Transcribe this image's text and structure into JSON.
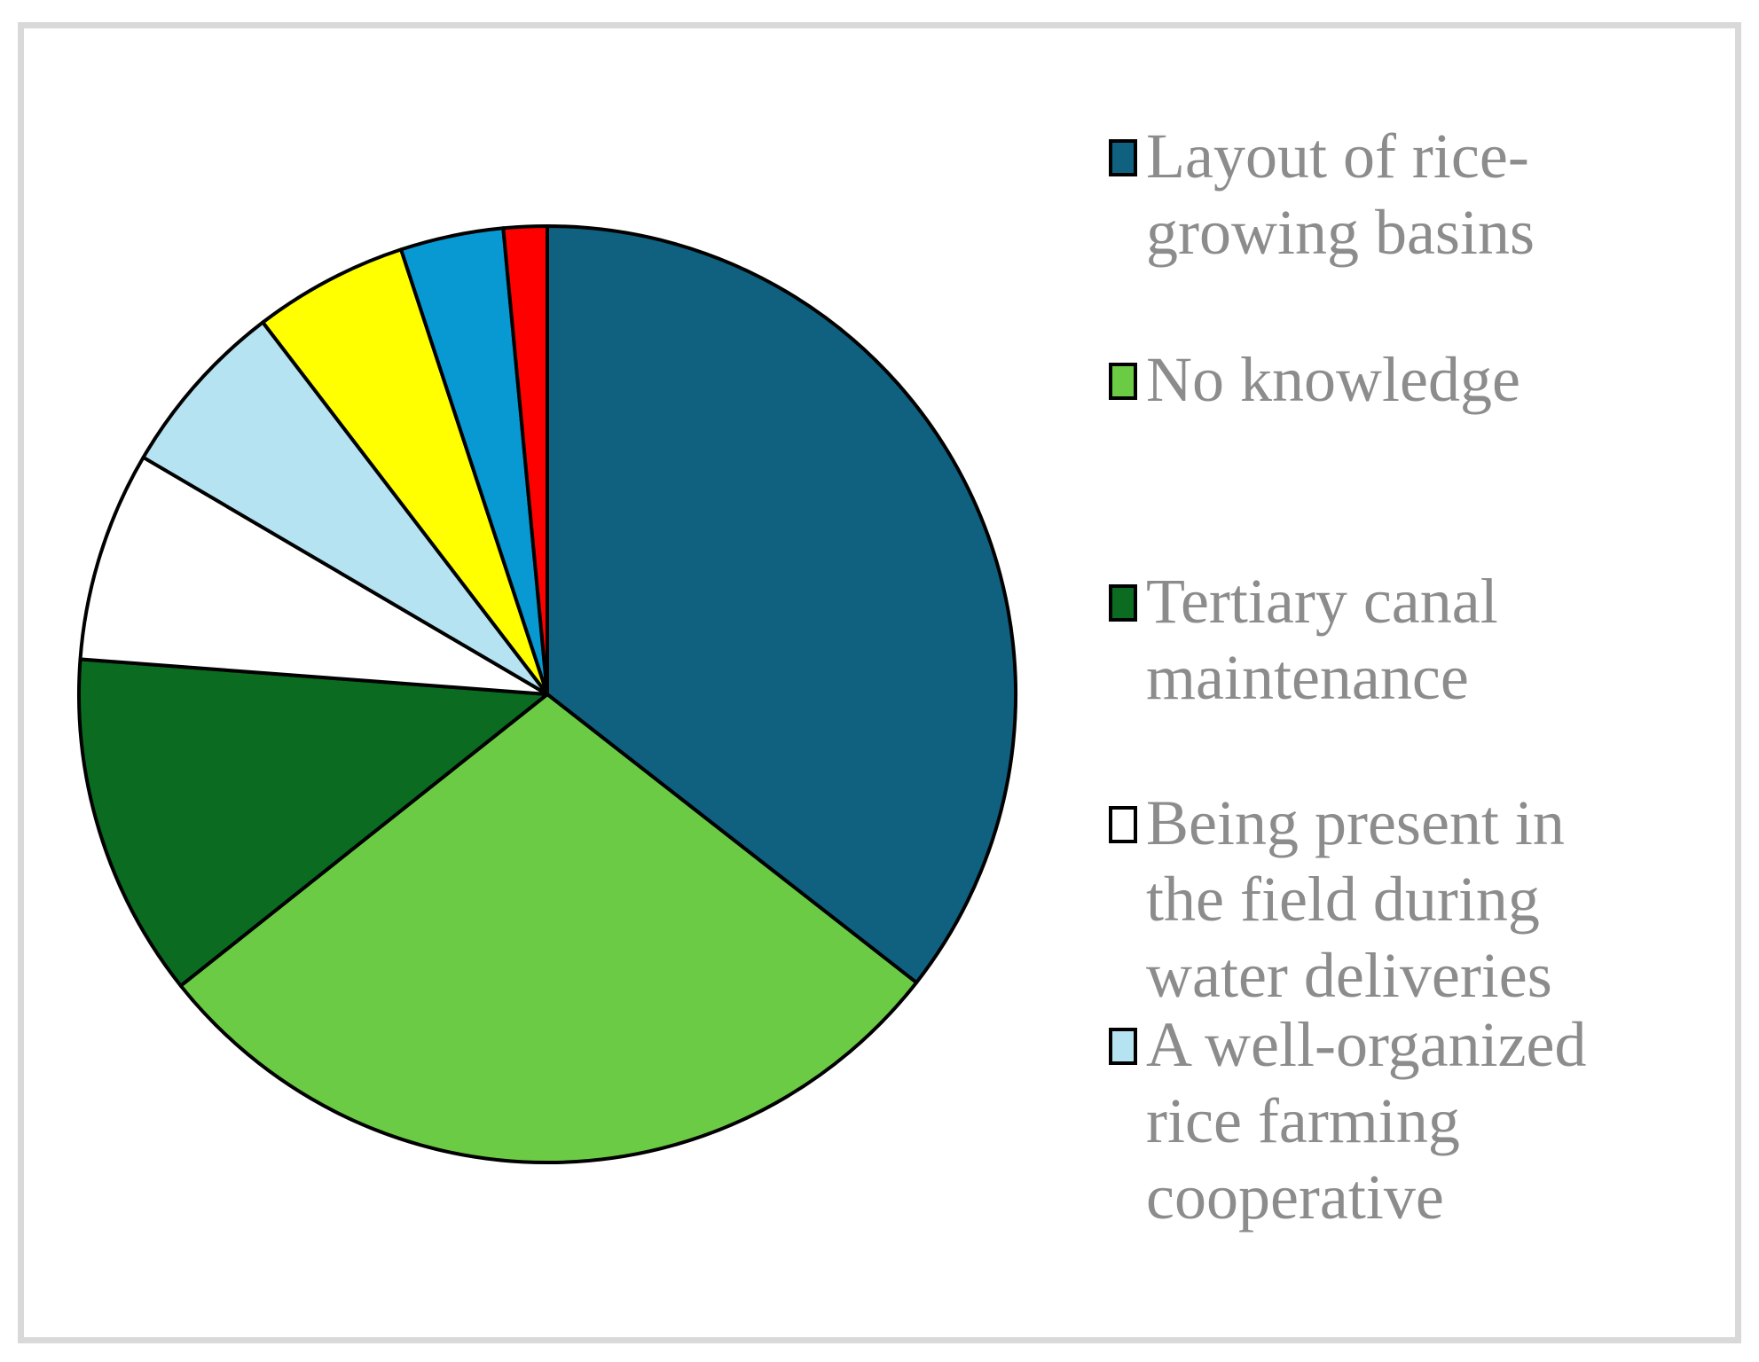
{
  "page": {
    "background_color": "#FFFFFF",
    "frame_color": "#D9D9D9"
  },
  "chart_data": {
    "type": "pie",
    "title": "",
    "legend_position": "right",
    "legend_text_color": "#8C8C8C",
    "slice_outline_color": "#000000",
    "slices": [
      {
        "label": "Layout of rice-growing basins",
        "color": "#0F617F",
        "start_deg": 0,
        "end_deg": 128,
        "percent": 35.6
      },
      {
        "label": "No knowledge",
        "color": "#6CCB45",
        "start_deg": 128,
        "end_deg": 231.5,
        "percent": 28.7
      },
      {
        "label": "Tertiary canal maintenance",
        "color": "#0B6B20",
        "start_deg": 231.5,
        "end_deg": 274.3,
        "percent": 11.9
      },
      {
        "label": "Being present in the field during water deliveries",
        "color": "#FFFFFF",
        "start_deg": 274.3,
        "end_deg": 300.4,
        "percent": 7.3
      },
      {
        "label": "A well-organized rice farming cooperative",
        "color": "#B5E3F2",
        "start_deg": 300.4,
        "end_deg": 322.6,
        "percent": 6.2
      },
      {
        "label": null,
        "color": "#FFFF00",
        "start_deg": 322.6,
        "end_deg": 341.8,
        "percent": 5.3
      },
      {
        "label": null,
        "color": "#0899D2",
        "start_deg": 341.8,
        "end_deg": 354.6,
        "percent": 3.6
      },
      {
        "label": null,
        "color": "#FF0000",
        "start_deg": 354.6,
        "end_deg": 360,
        "percent": 1.5
      }
    ],
    "legend": [
      {
        "label": "Layout of rice-\ngrowing basins",
        "color": "#0F617F"
      },
      {
        "label": "No knowledge",
        "color": "#6CCB45"
      },
      {
        "label": "Tertiary canal\nmaintenance",
        "color": "#0B6B20"
      },
      {
        "label": "Being present in\nthe field during\nwater deliveries",
        "color": "#FFFFFF"
      },
      {
        "label": "A well-organized\nrice farming\ncooperative",
        "color": "#B5E3F2"
      }
    ]
  }
}
